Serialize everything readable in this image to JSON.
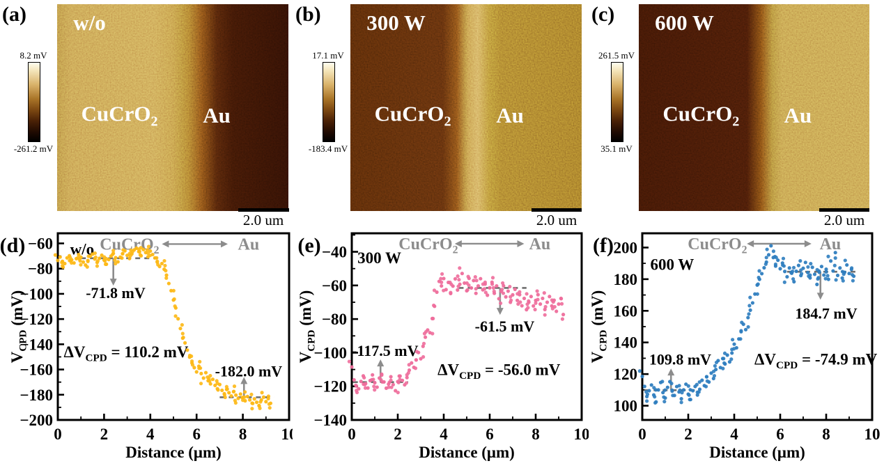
{
  "colors": {
    "series_gold": "#FDB815",
    "series_pink": "#EE6D9B",
    "series_blue": "#2E7DBF",
    "annotation_gray": "#8c8c8c",
    "dash_gray": "#6e6e6e",
    "axis_black": "#000000"
  },
  "afm_panels": [
    {
      "label": "(a)",
      "condition": "w/o",
      "colorbar_top": "8.2 mV",
      "colorbar_bottom": "-261.2 mV",
      "region_left": "CuCrO",
      "region_left_sub": "2",
      "region_right": "Au",
      "scalebar": "2.0 um"
    },
    {
      "label": "(b)",
      "condition": "300 W",
      "colorbar_top": "17.1 mV",
      "colorbar_bottom": "-183.4 mV",
      "region_left": "CuCrO",
      "region_left_sub": "2",
      "region_right": "Au",
      "scalebar": "2.0 um"
    },
    {
      "label": "(c)",
      "condition": "600 W",
      "colorbar_top": "261.5 mV",
      "colorbar_bottom": "35.1 mV",
      "region_left": "CuCrO",
      "region_left_sub": "2",
      "region_right": "Au",
      "scalebar": "2.0 um"
    }
  ],
  "chart_data": [
    {
      "id": "d",
      "type": "scatter",
      "panel_label": "(d)",
      "condition": {
        "text": "w/o",
        "x": 1.05,
        "y": -65
      },
      "xlabel": "Distance (μm)",
      "ylabel": {
        "main": "V",
        "sub": "CPD",
        "unit": " (mV)"
      },
      "xlim": [
        0,
        10
      ],
      "ylim": [
        -200,
        -52
      ],
      "xticks": [
        0,
        2,
        4,
        6,
        8,
        10
      ],
      "yticks": [
        -60,
        -80,
        -100,
        -120,
        -140,
        -160,
        -180,
        -200
      ],
      "point_color": "#FDB815",
      "region_annotation": {
        "left_text": "CuCrO",
        "left_sub": "2",
        "right_text": "Au",
        "y": -60.5,
        "left_x": 3.1,
        "x1": 4.5,
        "x2": 7.35,
        "right_x": 8.25
      },
      "levels": [
        {
          "label": "-71.8 mV",
          "y": -71.8,
          "x1": 1.0,
          "x2": 4.3,
          "arrow_x": 2.4,
          "tip": -93.5,
          "tx": 2.5,
          "ty": -99
        },
        {
          "label": "-182.0 mV",
          "y": -182,
          "x1": 7.0,
          "x2": 9.35,
          "arrow_x": 8.05,
          "tip": -166,
          "tx": 8.25,
          "ty": -161
        }
      ],
      "delta_label": {
        "text_pre": "ΔV",
        "sub": "CPD",
        "text_post": " = 110.2 mV",
        "x": 2.95,
        "y": -146
      },
      "points": [
        [
          0,
          -73.5
        ],
        [
          0.1,
          -70.8
        ],
        [
          0.2,
          -74.2
        ],
        [
          0.3,
          -76
        ],
        [
          0.4,
          -71.5
        ],
        [
          0.5,
          -69.8
        ],
        [
          0.6,
          -73
        ],
        [
          0.7,
          -75.5
        ],
        [
          0.8,
          -72.1
        ],
        [
          0.9,
          -68.9
        ],
        [
          1,
          -71
        ],
        [
          1.1,
          -74.8
        ],
        [
          1.2,
          -77.2
        ],
        [
          1.3,
          -73.6
        ],
        [
          1.4,
          -70.2
        ],
        [
          1.5,
          -68.5
        ],
        [
          1.6,
          -72.4
        ],
        [
          1.7,
          -75.1
        ],
        [
          1.8,
          -71.8
        ],
        [
          1.9,
          -69.4
        ],
        [
          2,
          -73.2
        ],
        [
          2.1,
          -76.5
        ],
        [
          2.2,
          -72.8
        ],
        [
          2.3,
          -70.1
        ],
        [
          2.4,
          -67.9
        ],
        [
          2.5,
          -71.3
        ],
        [
          2.6,
          -74.6
        ],
        [
          2.7,
          -70.9
        ],
        [
          2.8,
          -68.2
        ],
        [
          2.9,
          -65.9
        ],
        [
          3,
          -69.5
        ],
        [
          3.1,
          -72
        ],
        [
          3.2,
          -68.4
        ],
        [
          3.3,
          -65.2
        ],
        [
          3.4,
          -63.8
        ],
        [
          3.5,
          -66.5
        ],
        [
          3.6,
          -69.8
        ],
        [
          3.7,
          -64.9
        ],
        [
          3.8,
          -67.3
        ],
        [
          3.9,
          -70.6
        ],
        [
          4,
          -66.1
        ],
        [
          4.1,
          -68.8
        ],
        [
          4.2,
          -71.5
        ],
        [
          4.3,
          -74.9
        ],
        [
          4.4,
          -78.3
        ],
        [
          4.5,
          -76
        ],
        [
          4.6,
          -80.5
        ],
        [
          4.7,
          -85.2
        ],
        [
          4.8,
          -91.8
        ],
        [
          4.9,
          -97.5
        ],
        [
          5,
          -104.9
        ],
        [
          5.1,
          -111.2
        ],
        [
          5.2,
          -119.8
        ],
        [
          5.3,
          -127.5
        ],
        [
          5.4,
          -135.1
        ],
        [
          5.5,
          -138.9
        ],
        [
          5.6,
          -144.6
        ],
        [
          5.7,
          -150.2
        ],
        [
          5.8,
          -154.8
        ],
        [
          5.9,
          -158.5
        ],
        [
          6,
          -161.9
        ],
        [
          6.1,
          -157.4
        ],
        [
          6.2,
          -163.2
        ],
        [
          6.3,
          -166.8
        ],
        [
          6.4,
          -162.5
        ],
        [
          6.5,
          -168.9
        ],
        [
          6.6,
          -171.4
        ],
        [
          6.7,
          -167.8
        ],
        [
          6.8,
          -172.6
        ],
        [
          6.9,
          -175.3
        ],
        [
          7,
          -171.9
        ],
        [
          7.1,
          -176.5
        ],
        [
          7.2,
          -179.2
        ],
        [
          7.3,
          -175.8
        ],
        [
          7.4,
          -178.4
        ],
        [
          7.5,
          -181
        ],
        [
          7.6,
          -177.6
        ],
        [
          7.7,
          -180.3
        ],
        [
          7.8,
          -182.9
        ],
        [
          7.9,
          -179.5
        ],
        [
          8,
          -182.2
        ],
        [
          8.1,
          -184.8
        ],
        [
          8.2,
          -181.4
        ],
        [
          8.3,
          -184.1
        ],
        [
          8.4,
          -186.7
        ],
        [
          8.5,
          -183.3
        ],
        [
          8.6,
          -186
        ],
        [
          8.7,
          -188.6
        ],
        [
          8.8,
          -184.2
        ],
        [
          8.9,
          -181.9
        ],
        [
          9,
          -185.5
        ],
        [
          9.1,
          -183.1
        ],
        [
          9.2,
          -186.8
        ]
      ]
    },
    {
      "id": "e",
      "type": "scatter",
      "panel_label": "(e)",
      "condition": {
        "text": "300 W",
        "x": 1.2,
        "y": -44
      },
      "xlabel": "Distance (μm)",
      "ylabel": {
        "main": "V",
        "sub": "CPD",
        "unit": " (mV)"
      },
      "xlim": [
        0,
        10
      ],
      "ylim": [
        -140,
        -29
      ],
      "xticks": [
        0,
        2,
        4,
        6,
        8,
        10
      ],
      "yticks": [
        -40,
        -60,
        -80,
        -100,
        -120,
        -140
      ],
      "point_color": "#EE6D9B",
      "region_annotation": {
        "left_text": "CuCrO",
        "left_sub": "2",
        "right_text": "Au",
        "y": -35.2,
        "left_x": 3.33,
        "x1": 4.48,
        "x2": 7.5,
        "right_x": 8.18
      },
      "levels": [
        {
          "label": "-117.5 mV",
          "y": -117.5,
          "x1": 0.05,
          "x2": 2.45,
          "arrow_x": 1.25,
          "tip": -104,
          "tx": 1.45,
          "ty": -98.5
        },
        {
          "label": "-61.5 mV",
          "y": -61.5,
          "x1": 4.65,
          "x2": 7.6,
          "arrow_x": 6.45,
          "tip": -77.5,
          "tx": 6.65,
          "ty": -84
        }
      ],
      "delta_label": {
        "text_pre": "ΔV",
        "sub": "CPD",
        "text_post": " = -56.0 mV",
        "x": 6.4,
        "y": -110
      },
      "points": [
        [
          0,
          -108.5
        ],
        [
          0.1,
          -116.2
        ],
        [
          0.2,
          -119.8
        ],
        [
          0.3,
          -121.5
        ],
        [
          0.4,
          -117.1
        ],
        [
          0.5,
          -113.8
        ],
        [
          0.6,
          -118.4
        ],
        [
          0.7,
          -121
        ],
        [
          0.8,
          -116.6
        ],
        [
          0.9,
          -113.2
        ],
        [
          1,
          -117.9
        ],
        [
          1.1,
          -120.5
        ],
        [
          1.2,
          -115.1
        ],
        [
          1.3,
          -112.8
        ],
        [
          1.4,
          -117.4
        ],
        [
          1.5,
          -121.1
        ],
        [
          1.6,
          -118.7
        ],
        [
          1.7,
          -114.3
        ],
        [
          1.8,
          -119
        ],
        [
          1.9,
          -122.6
        ],
        [
          2,
          -117.2
        ],
        [
          2.1,
          -113.9
        ],
        [
          2.2,
          -116.5
        ],
        [
          2.3,
          -119.1
        ],
        [
          2.4,
          -114.8
        ],
        [
          2.5,
          -110.4
        ],
        [
          2.6,
          -106.1
        ],
        [
          2.7,
          -108.7
        ],
        [
          2.8,
          -104.3
        ],
        [
          2.9,
          -99.9
        ],
        [
          3,
          -103.6
        ],
        [
          3.1,
          -96.2
        ],
        [
          3.2,
          -90.8
        ],
        [
          3.3,
          -86.5
        ],
        [
          3.4,
          -88.1
        ],
        [
          3.5,
          -79.7
        ],
        [
          3.6,
          -72.4
        ],
        [
          3.7,
          -64
        ],
        [
          3.8,
          -57.6
        ],
        [
          3.9,
          -60.3
        ],
        [
          4,
          -55.9
        ],
        [
          4.1,
          -62.5
        ],
        [
          4.2,
          -58.2
        ],
        [
          4.3,
          -64.8
        ],
        [
          4.4,
          -60.4
        ],
        [
          4.5,
          -56.1
        ],
        [
          4.6,
          -62.7
        ],
        [
          4.7,
          -59.3
        ],
        [
          4.8,
          -52.9
        ],
        [
          4.9,
          -58.6
        ],
        [
          5,
          -63.2
        ],
        [
          5.1,
          -55.8
        ],
        [
          5.2,
          -61.5
        ],
        [
          5.3,
          -57.1
        ],
        [
          5.4,
          -64.7
        ],
        [
          5.5,
          -60.3
        ],
        [
          5.6,
          -56
        ],
        [
          5.7,
          -62.6
        ],
        [
          5.8,
          -59.2
        ],
        [
          5.9,
          -65.8
        ],
        [
          6,
          -61.4
        ],
        [
          6.1,
          -58.1
        ],
        [
          6.2,
          -64.7
        ],
        [
          6.3,
          -60.3
        ],
        [
          6.4,
          -67.9
        ],
        [
          6.5,
          -63.5
        ],
        [
          6.6,
          -60.2
        ],
        [
          6.7,
          -66.8
        ],
        [
          6.8,
          -63.4
        ],
        [
          6.9,
          -70
        ],
        [
          7,
          -65.6
        ],
        [
          7.1,
          -62.3
        ],
        [
          7.2,
          -68.9
        ],
        [
          7.3,
          -65.5
        ],
        [
          7.4,
          -72.1
        ],
        [
          7.5,
          -67.7
        ],
        [
          7.6,
          -74.4
        ],
        [
          7.7,
          -70
        ],
        [
          7.8,
          -66.6
        ],
        [
          7.9,
          -72.2
        ],
        [
          8,
          -68.9
        ],
        [
          8.1,
          -65.5
        ],
        [
          8.2,
          -71.1
        ],
        [
          8.3,
          -67.7
        ],
        [
          8.4,
          -74.3
        ],
        [
          8.5,
          -70
        ],
        [
          8.6,
          -66.6
        ],
        [
          8.7,
          -72.2
        ],
        [
          8.8,
          -68.8
        ],
        [
          8.9,
          -75.4
        ],
        [
          9,
          -71.1
        ],
        [
          9.1,
          -67.7
        ],
        [
          9.2,
          -77.3
        ]
      ]
    },
    {
      "id": "f",
      "type": "scatter",
      "panel_label": "(f)",
      "condition": {
        "text": "600 W",
        "x": 1.3,
        "y": 189
      },
      "xlabel": "Distance (μm)",
      "ylabel": {
        "main": "V",
        "sub": "CPD",
        "unit": " (mV)"
      },
      "xlim": [
        0,
        10
      ],
      "ylim": [
        91,
        209
      ],
      "xticks": [
        0,
        2,
        4,
        6,
        8,
        10
      ],
      "yticks": [
        200,
        180,
        160,
        140,
        120,
        100
      ],
      "point_color": "#2E7DBF",
      "region_annotation": {
        "left_text": "CuCrO",
        "left_sub": "2",
        "right_text": "Au",
        "y": 202.4,
        "left_x": 3.27,
        "x1": 4.55,
        "x2": 7.36,
        "right_x": 8.18
      },
      "levels": [
        {
          "label": "109.8 mV",
          "y": 109.8,
          "x1": 0.1,
          "x2": 2.5,
          "arrow_x": 1.25,
          "tip": 123.5,
          "tx": 1.65,
          "ty": 129.5
        },
        {
          "label": "184.7 mV",
          "y": 184.7,
          "x1": 6.3,
          "x2": 9.3,
          "arrow_x": 7.75,
          "tip": 167,
          "tx": 8.0,
          "ty": 158.5
        }
      ],
      "delta_label": {
        "text_pre": "ΔV",
        "sub": "CPD",
        "text_post": " = -74.9 mV",
        "x": 7.55,
        "y": 129.5
      },
      "points": [
        [
          0,
          118.5
        ],
        [
          0.1,
          112.2
        ],
        [
          0.2,
          105.8
        ],
        [
          0.3,
          109.5
        ],
        [
          0.4,
          113.1
        ],
        [
          0.5,
          106.8
        ],
        [
          0.6,
          102.4
        ],
        [
          0.7,
          110
        ],
        [
          0.8,
          114.7
        ],
        [
          0.9,
          108.3
        ],
        [
          1,
          104.9
        ],
        [
          1.1,
          111.6
        ],
        [
          1.2,
          115.2
        ],
        [
          1.3,
          109.8
        ],
        [
          1.4,
          106.5
        ],
        [
          1.5,
          112.1
        ],
        [
          1.6,
          108.7
        ],
        [
          1.7,
          104.4
        ],
        [
          1.8,
          110
        ],
        [
          1.9,
          113.6
        ],
        [
          2,
          107.3
        ],
        [
          2.1,
          103.9
        ],
        [
          2.2,
          109.5
        ],
        [
          2.3,
          112.2
        ],
        [
          2.4,
          106.8
        ],
        [
          2.5,
          110.4
        ],
        [
          2.6,
          116.1
        ],
        [
          2.7,
          112.7
        ],
        [
          2.8,
          118.3
        ],
        [
          2.9,
          115
        ],
        [
          3,
          120.6
        ],
        [
          3.1,
          117.2
        ],
        [
          3.2,
          122.9
        ],
        [
          3.3,
          128.5
        ],
        [
          3.4,
          124.1
        ],
        [
          3.5,
          129.8
        ],
        [
          3.6,
          126.4
        ],
        [
          3.7,
          132
        ],
        [
          3.8,
          127.7
        ],
        [
          3.9,
          133.3
        ],
        [
          4,
          138.9
        ],
        [
          4.1,
          136.6
        ],
        [
          4.2,
          142.2
        ],
        [
          4.3,
          146.8
        ],
        [
          4.4,
          151.5
        ],
        [
          4.5,
          148.1
        ],
        [
          4.6,
          155.7
        ],
        [
          4.7,
          160.4
        ],
        [
          4.8,
          165
        ],
        [
          4.9,
          170.6
        ],
        [
          5,
          176.3
        ],
        [
          5.1,
          179.9
        ],
        [
          5.2,
          183.5
        ],
        [
          5.3,
          187.2
        ],
        [
          5.4,
          190.8
        ],
        [
          5.5,
          195.4
        ],
        [
          5.6,
          201.1
        ],
        [
          5.7,
          193.7
        ],
        [
          5.8,
          188.3
        ],
        [
          5.9,
          192
        ],
        [
          6,
          186.6
        ],
        [
          6.1,
          190.2
        ],
        [
          6.2,
          184.9
        ],
        [
          6.3,
          181.5
        ],
        [
          6.4,
          187.1
        ],
        [
          6.5,
          183.8
        ],
        [
          6.6,
          178.4
        ],
        [
          6.7,
          185
        ],
        [
          6.8,
          188.7
        ],
        [
          6.9,
          182.3
        ],
        [
          7,
          186.9
        ],
        [
          7.1,
          190.6
        ],
        [
          7.2,
          184.2
        ],
        [
          7.3,
          180.8
        ],
        [
          7.4,
          187.5
        ],
        [
          7.5,
          183.1
        ],
        [
          7.6,
          176.7
        ],
        [
          7.7,
          184.4
        ],
        [
          7.8,
          188
        ],
        [
          7.9,
          182.6
        ],
        [
          8,
          186.3
        ],
        [
          8.1,
          179.9
        ],
        [
          8.2,
          191.5
        ],
        [
          8.3,
          185.2
        ],
        [
          8.4,
          196.8
        ],
        [
          8.5,
          182.4
        ],
        [
          8.6,
          187.1
        ],
        [
          8.7,
          180.7
        ],
        [
          8.8,
          184.3
        ],
        [
          8.9,
          189
        ],
        [
          9,
          183.6
        ],
        [
          9.1,
          186.2
        ],
        [
          9.2,
          181.9
        ]
      ]
    }
  ]
}
